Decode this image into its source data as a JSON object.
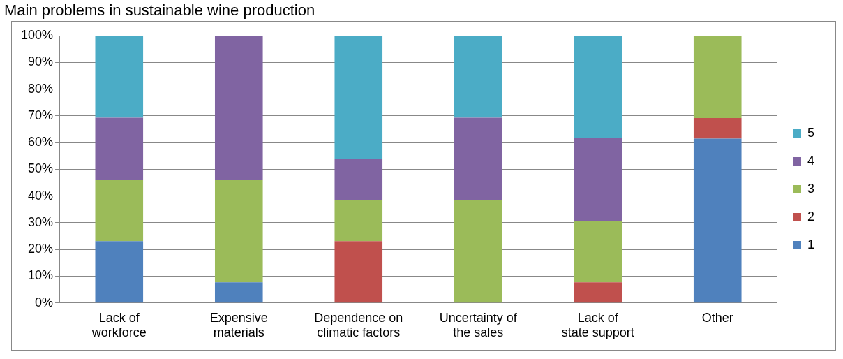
{
  "chart_data": {
    "type": "bar",
    "title": "Main problems in sustainable wine production",
    "stacked": true,
    "categories": [
      "Lack of workforce",
      "Expensive materials",
      "Dependence on climatic factors",
      "Uncertainty of the sales",
      "Lack of state support",
      "Other"
    ],
    "series": [
      {
        "name": "1",
        "color": "#4f81bd",
        "values": [
          23.1,
          7.7,
          0,
          0,
          0,
          61.5
        ]
      },
      {
        "name": "2",
        "color": "#c0504d",
        "values": [
          0,
          0,
          23.1,
          0,
          7.7,
          7.7
        ]
      },
      {
        "name": "3",
        "color": "#9bbb59",
        "values": [
          23.1,
          38.5,
          15.4,
          38.5,
          23.1,
          30.8
        ]
      },
      {
        "name": "4",
        "color": "#8064a2",
        "values": [
          23.1,
          53.8,
          15.4,
          30.8,
          30.8,
          0
        ]
      },
      {
        "name": "5",
        "color": "#4bacc6",
        "values": [
          30.7,
          0,
          46.1,
          30.7,
          38.4,
          0
        ]
      }
    ],
    "ylim": [
      0,
      100
    ],
    "yticks": [
      {
        "value": 0,
        "label": "0%"
      },
      {
        "value": 10,
        "label": "10%"
      },
      {
        "value": 20,
        "label": "20%"
      },
      {
        "value": 30,
        "label": "30%"
      },
      {
        "value": 40,
        "label": "40%"
      },
      {
        "value": 50,
        "label": "50%"
      },
      {
        "value": 60,
        "label": "60%"
      },
      {
        "value": 70,
        "label": "70%"
      },
      {
        "value": 80,
        "label": "80%"
      },
      {
        "value": 90,
        "label": "90%"
      },
      {
        "value": 100,
        "label": "100%"
      }
    ],
    "grid": "y",
    "legend": "right"
  }
}
